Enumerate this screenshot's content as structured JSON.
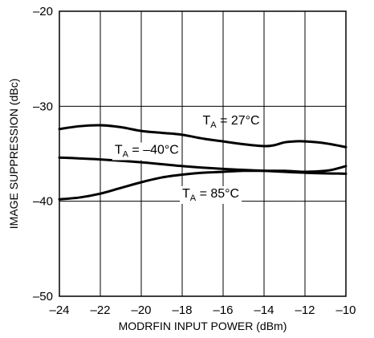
{
  "chart_data": {
    "type": "line",
    "title": "",
    "xlabel": "MODRFIN INPUT POWER (dBm)",
    "ylabel": "IMAGE SUPPRESSION (dBc)",
    "xlim": [
      -24,
      -10
    ],
    "ylim": [
      -50,
      -20
    ],
    "xticks": [
      -24,
      -22,
      -20,
      -18,
      -16,
      -14,
      -12,
      -10
    ],
    "xtick_labels": [
      "–24",
      "–22",
      "–20",
      "–18",
      "–16",
      "–14",
      "–12",
      "–10"
    ],
    "yticks": [
      -50,
      -40,
      -30,
      -20
    ],
    "ytick_labels": [
      "–50",
      "–40",
      "–30",
      "–20"
    ],
    "grid": true,
    "series": [
      {
        "name": "T_A = 27°C",
        "label_main": "T",
        "label_sub": "A",
        "label_rest": " = 27°C",
        "x": [
          -24,
          -23,
          -22,
          -21,
          -20,
          -19,
          -18,
          -17,
          -16,
          -15,
          -14,
          -13.5,
          -13,
          -12.5,
          -12,
          -11,
          -10
        ],
        "y": [
          -32.4,
          -32.1,
          -32.0,
          -32.2,
          -32.6,
          -32.8,
          -33.0,
          -33.4,
          -33.7,
          -34.0,
          -34.2,
          -34.1,
          -33.8,
          -33.7,
          -33.7,
          -33.9,
          -34.3
        ]
      },
      {
        "name": "T_A = –40°C",
        "label_main": "T",
        "label_sub": "A",
        "label_rest": " = –40°C",
        "x": [
          -24,
          -22,
          -20,
          -18,
          -16,
          -14,
          -12,
          -10
        ],
        "y": [
          -35.4,
          -35.6,
          -35.9,
          -36.3,
          -36.6,
          -36.8,
          -37.0,
          -37.1
        ]
      },
      {
        "name": "T_A = 85°C",
        "label_main": "T",
        "label_sub": "A",
        "label_rest": " = 85°C",
        "x": [
          -24,
          -23,
          -22,
          -21,
          -20,
          -19,
          -18,
          -17,
          -16,
          -15,
          -14,
          -13,
          -12,
          -11,
          -10.5,
          -10
        ],
        "y": [
          -39.8,
          -39.6,
          -39.2,
          -38.6,
          -38.0,
          -37.5,
          -37.2,
          -37.0,
          -36.9,
          -36.8,
          -36.8,
          -36.8,
          -36.9,
          -36.8,
          -36.6,
          -36.3
        ]
      }
    ]
  }
}
